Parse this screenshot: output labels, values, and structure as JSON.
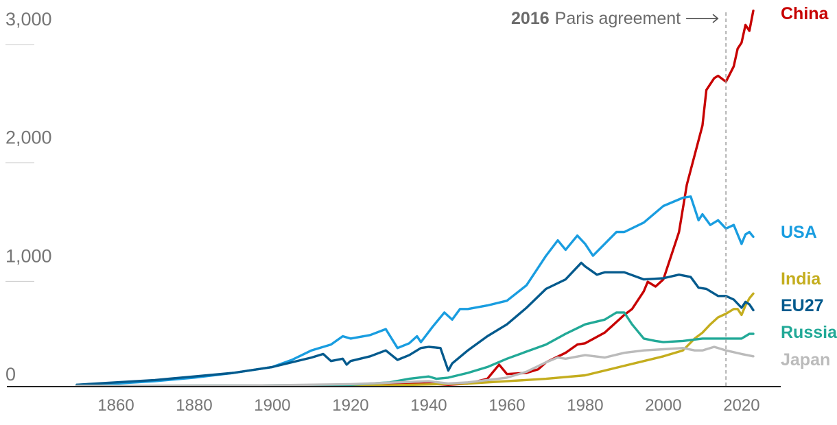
{
  "chart_data": {
    "type": "line",
    "title": "",
    "xlabel": "",
    "ylabel": "",
    "xlim": [
      1850,
      2023
    ],
    "ylim": [
      0,
      3000
    ],
    "x_ticks": [
      "1860",
      "1880",
      "1900",
      "1920",
      "1940",
      "1960",
      "1980",
      "2000",
      "2020"
    ],
    "y_ticks": [
      "0",
      "1,000",
      "2,000",
      "3,000"
    ],
    "grid": false,
    "legend": "right, labels at line ends",
    "annotation": {
      "year": "2016",
      "text": "Paris agreement",
      "x": 2016
    },
    "series": [
      {
        "name": "China",
        "color": "#c70000",
        "points": [
          [
            1850,
            0
          ],
          [
            1900,
            1
          ],
          [
            1930,
            10
          ],
          [
            1940,
            20
          ],
          [
            1945,
            10
          ],
          [
            1950,
            20
          ],
          [
            1955,
            60
          ],
          [
            1958,
            180
          ],
          [
            1960,
            100
          ],
          [
            1965,
            110
          ],
          [
            1968,
            140
          ],
          [
            1970,
            200
          ],
          [
            1975,
            280
          ],
          [
            1978,
            350
          ],
          [
            1980,
            360
          ],
          [
            1985,
            450
          ],
          [
            1990,
            600
          ],
          [
            1992,
            650
          ],
          [
            1995,
            800
          ],
          [
            1996,
            880
          ],
          [
            1998,
            840
          ],
          [
            2000,
            900
          ],
          [
            2002,
            1100
          ],
          [
            2004,
            1300
          ],
          [
            2006,
            1700
          ],
          [
            2008,
            1950
          ],
          [
            2010,
            2200
          ],
          [
            2011,
            2500
          ],
          [
            2013,
            2600
          ],
          [
            2014,
            2620
          ],
          [
            2016,
            2570
          ],
          [
            2018,
            2700
          ],
          [
            2019,
            2850
          ],
          [
            2020,
            2900
          ],
          [
            2021,
            3050
          ],
          [
            2022,
            3000
          ],
          [
            2023,
            3170
          ]
        ]
      },
      {
        "name": "USA",
        "color": "#199de0",
        "points": [
          [
            1850,
            10
          ],
          [
            1860,
            20
          ],
          [
            1870,
            40
          ],
          [
            1880,
            70
          ],
          [
            1890,
            110
          ],
          [
            1900,
            160
          ],
          [
            1905,
            220
          ],
          [
            1910,
            300
          ],
          [
            1915,
            350
          ],
          [
            1918,
            420
          ],
          [
            1920,
            400
          ],
          [
            1925,
            430
          ],
          [
            1929,
            480
          ],
          [
            1932,
            320
          ],
          [
            1935,
            360
          ],
          [
            1937,
            420
          ],
          [
            1938,
            370
          ],
          [
            1941,
            500
          ],
          [
            1944,
            620
          ],
          [
            1946,
            560
          ],
          [
            1948,
            650
          ],
          [
            1950,
            650
          ],
          [
            1955,
            680
          ],
          [
            1960,
            720
          ],
          [
            1965,
            850
          ],
          [
            1970,
            1100
          ],
          [
            1973,
            1230
          ],
          [
            1975,
            1150
          ],
          [
            1978,
            1270
          ],
          [
            1980,
            1200
          ],
          [
            1982,
            1100
          ],
          [
            1985,
            1200
          ],
          [
            1988,
            1300
          ],
          [
            1990,
            1300
          ],
          [
            1995,
            1380
          ],
          [
            2000,
            1520
          ],
          [
            2005,
            1590
          ],
          [
            2007,
            1600
          ],
          [
            2009,
            1400
          ],
          [
            2010,
            1450
          ],
          [
            2012,
            1360
          ],
          [
            2014,
            1400
          ],
          [
            2016,
            1330
          ],
          [
            2018,
            1360
          ],
          [
            2020,
            1200
          ],
          [
            2021,
            1280
          ],
          [
            2022,
            1300
          ],
          [
            2023,
            1260
          ]
        ]
      },
      {
        "name": "India",
        "color": "#c4ad1e",
        "points": [
          [
            1850,
            0
          ],
          [
            1900,
            2
          ],
          [
            1930,
            5
          ],
          [
            1950,
            20
          ],
          [
            1960,
            40
          ],
          [
            1970,
            60
          ],
          [
            1980,
            90
          ],
          [
            1990,
            170
          ],
          [
            2000,
            250
          ],
          [
            2005,
            300
          ],
          [
            2008,
            400
          ],
          [
            2010,
            450
          ],
          [
            2012,
            520
          ],
          [
            2014,
            580
          ],
          [
            2016,
            610
          ],
          [
            2018,
            650
          ],
          [
            2019,
            650
          ],
          [
            2020,
            600
          ],
          [
            2021,
            680
          ],
          [
            2022,
            740
          ],
          [
            2023,
            780
          ]
        ]
      },
      {
        "name": "EU27",
        "color": "#045a8d",
        "points": [
          [
            1850,
            10
          ],
          [
            1860,
            30
          ],
          [
            1870,
            50
          ],
          [
            1880,
            80
          ],
          [
            1890,
            110
          ],
          [
            1900,
            160
          ],
          [
            1905,
            200
          ],
          [
            1910,
            240
          ],
          [
            1913,
            270
          ],
          [
            1915,
            210
          ],
          [
            1918,
            230
          ],
          [
            1919,
            180
          ],
          [
            1920,
            210
          ],
          [
            1925,
            250
          ],
          [
            1929,
            300
          ],
          [
            1932,
            220
          ],
          [
            1935,
            260
          ],
          [
            1938,
            320
          ],
          [
            1940,
            330
          ],
          [
            1943,
            320
          ],
          [
            1945,
            130
          ],
          [
            1946,
            190
          ],
          [
            1950,
            300
          ],
          [
            1955,
            420
          ],
          [
            1960,
            520
          ],
          [
            1965,
            660
          ],
          [
            1970,
            820
          ],
          [
            1975,
            900
          ],
          [
            1979,
            1040
          ],
          [
            1980,
            1010
          ],
          [
            1983,
            940
          ],
          [
            1985,
            960
          ],
          [
            1990,
            960
          ],
          [
            1995,
            900
          ],
          [
            2000,
            910
          ],
          [
            2004,
            940
          ],
          [
            2007,
            920
          ],
          [
            2009,
            830
          ],
          [
            2011,
            820
          ],
          [
            2014,
            760
          ],
          [
            2016,
            760
          ],
          [
            2018,
            730
          ],
          [
            2020,
            660
          ],
          [
            2021,
            710
          ],
          [
            2022,
            690
          ],
          [
            2023,
            640
          ]
        ]
      },
      {
        "name": "Russia",
        "color": "#22a997",
        "points": [
          [
            1850,
            0
          ],
          [
            1900,
            5
          ],
          [
            1920,
            10
          ],
          [
            1930,
            30
          ],
          [
            1935,
            60
          ],
          [
            1940,
            80
          ],
          [
            1942,
            60
          ],
          [
            1945,
            70
          ],
          [
            1950,
            110
          ],
          [
            1955,
            160
          ],
          [
            1960,
            230
          ],
          [
            1965,
            290
          ],
          [
            1970,
            350
          ],
          [
            1975,
            440
          ],
          [
            1980,
            520
          ],
          [
            1985,
            560
          ],
          [
            1988,
            620
          ],
          [
            1990,
            620
          ],
          [
            1992,
            520
          ],
          [
            1995,
            400
          ],
          [
            1998,
            380
          ],
          [
            2000,
            370
          ],
          [
            2005,
            380
          ],
          [
            2010,
            400
          ],
          [
            2015,
            400
          ],
          [
            2020,
            400
          ],
          [
            2022,
            440
          ],
          [
            2023,
            440
          ]
        ]
      },
      {
        "name": "Japan",
        "color": "#bbbbbb",
        "points": [
          [
            1850,
            0
          ],
          [
            1900,
            5
          ],
          [
            1920,
            15
          ],
          [
            1940,
            40
          ],
          [
            1945,
            20
          ],
          [
            1950,
            30
          ],
          [
            1955,
            50
          ],
          [
            1960,
            70
          ],
          [
            1965,
            120
          ],
          [
            1970,
            200
          ],
          [
            1973,
            240
          ],
          [
            1975,
            230
          ],
          [
            1980,
            260
          ],
          [
            1985,
            240
          ],
          [
            1990,
            280
          ],
          [
            1995,
            300
          ],
          [
            2000,
            310
          ],
          [
            2005,
            320
          ],
          [
            2008,
            300
          ],
          [
            2010,
            300
          ],
          [
            2013,
            330
          ],
          [
            2016,
            300
          ],
          [
            2020,
            270
          ],
          [
            2023,
            250
          ]
        ]
      }
    ]
  }
}
